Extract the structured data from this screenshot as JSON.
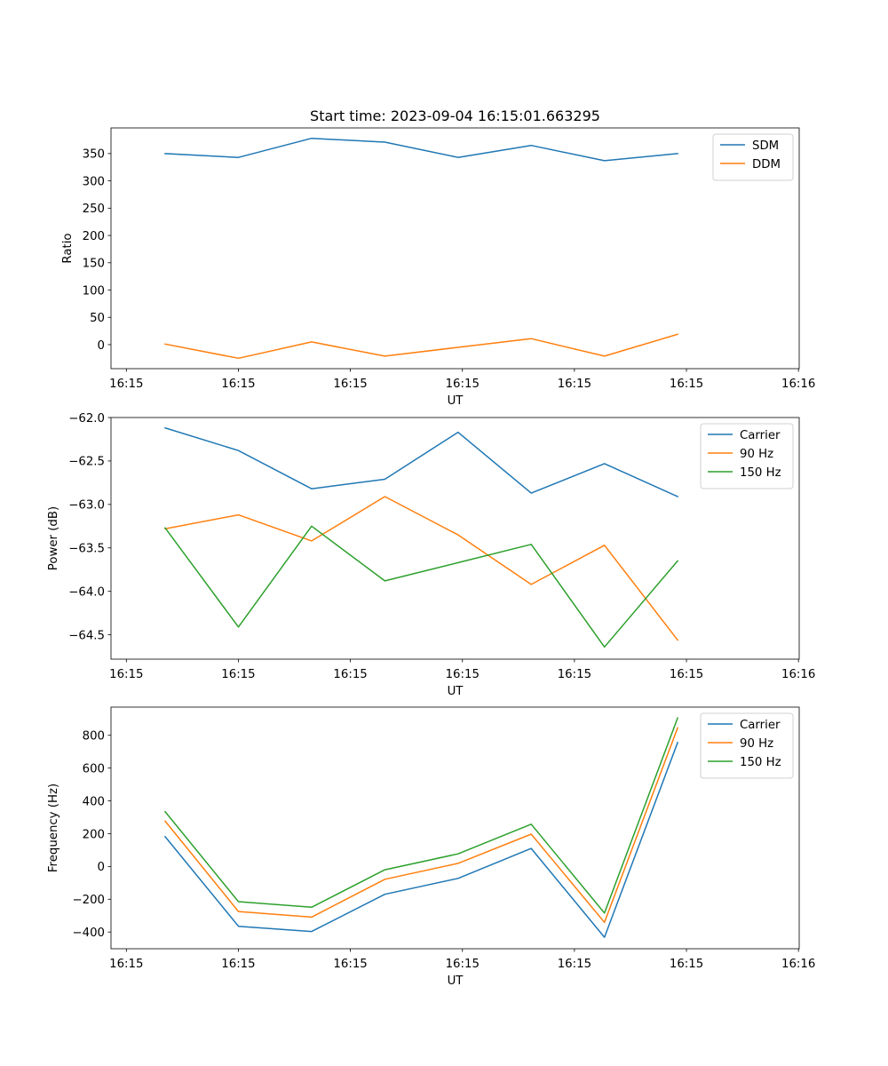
{
  "figure_title": "Start time: 2023-09-04 16:15:01.663295",
  "chart_data": [
    {
      "type": "line",
      "title": "Start time: 2023-09-04 16:15:01.663295",
      "xlabel": "UT",
      "ylabel": "Ratio",
      "x": [
        1,
        2,
        3,
        4,
        5,
        6,
        7,
        8
      ],
      "xlim": [
        0.26,
        9.66
      ],
      "xticks": [
        0.47,
        2.0,
        3.53,
        5.06,
        6.59,
        8.12,
        9.65
      ],
      "xtick_labels": [
        "16:15",
        "16:15",
        "16:15",
        "16:15",
        "16:15",
        "16:15",
        "16:16"
      ],
      "ylim": [
        -44,
        397
      ],
      "yticks": [
        0,
        50,
        100,
        150,
        200,
        250,
        300,
        350
      ],
      "ytick_labels": [
        "0",
        "50",
        "100",
        "150",
        "200",
        "250",
        "300",
        "350"
      ],
      "legend_position": "top-right",
      "grid": false,
      "series": [
        {
          "name": "SDM",
          "color": "#1f77b4",
          "values": [
            350,
            343,
            378,
            371,
            343,
            365,
            337,
            350
          ]
        },
        {
          "name": "DDM",
          "color": "#ff7f0e",
          "values": [
            1,
            -25,
            5,
            -21,
            -5,
            11,
            -21,
            19
          ]
        }
      ]
    },
    {
      "type": "line",
      "title": "",
      "xlabel": "UT",
      "ylabel": "Power (dB)",
      "x": [
        1,
        2,
        3,
        4,
        5,
        6,
        7,
        8
      ],
      "xlim": [
        0.26,
        9.66
      ],
      "xticks": [
        0.47,
        2.0,
        3.53,
        5.06,
        6.59,
        8.12,
        9.65
      ],
      "xtick_labels": [
        "16:15",
        "16:15",
        "16:15",
        "16:15",
        "16:15",
        "16:15",
        "16:16"
      ],
      "ylim": [
        -64.78,
        -62.0
      ],
      "yticks": [
        -64.5,
        -64.0,
        -63.5,
        -63.0,
        -62.5,
        -62.0
      ],
      "ytick_labels": [
        "−64.5",
        "−64.0",
        "−63.5",
        "−63.0",
        "−62.5",
        "−62.0"
      ],
      "legend_position": "top-right",
      "grid": false,
      "series": [
        {
          "name": "Carrier",
          "color": "#1f77b4",
          "values": [
            -62.12,
            -62.38,
            -62.82,
            -62.71,
            -62.17,
            -62.87,
            -62.53,
            -62.91
          ]
        },
        {
          "name": "90 Hz",
          "color": "#ff7f0e",
          "values": [
            -63.28,
            -63.12,
            -63.42,
            -62.91,
            -63.35,
            -63.92,
            -63.47,
            -64.56
          ]
        },
        {
          "name": "150 Hz",
          "color": "#2ca02c",
          "values": [
            -63.27,
            -64.41,
            -63.25,
            -63.88,
            -63.67,
            -63.46,
            -64.64,
            -63.65
          ]
        }
      ]
    },
    {
      "type": "line",
      "title": "",
      "xlabel": "UT",
      "ylabel": "Frequency (Hz)",
      "x": [
        1,
        2,
        3,
        4,
        5,
        6,
        7,
        8
      ],
      "xlim": [
        0.26,
        9.66
      ],
      "xticks": [
        0.47,
        2.0,
        3.53,
        5.06,
        6.59,
        8.12,
        9.65
      ],
      "xtick_labels": [
        "16:15",
        "16:15",
        "16:15",
        "16:15",
        "16:15",
        "16:15",
        "16:16"
      ],
      "ylim": [
        -502,
        972
      ],
      "yticks": [
        -400,
        -200,
        0,
        200,
        400,
        600,
        800
      ],
      "ytick_labels": [
        "−400",
        "−200",
        "0",
        "200",
        "400",
        "600",
        "800"
      ],
      "legend_position": "top-right",
      "grid": false,
      "series": [
        {
          "name": "Carrier",
          "color": "#1f77b4",
          "values": [
            182,
            -365,
            -397,
            -170,
            -73,
            110,
            -432,
            756
          ]
        },
        {
          "name": "90 Hz",
          "color": "#ff7f0e",
          "values": [
            276,
            -275,
            -309,
            -78,
            19,
            197,
            -341,
            845
          ]
        },
        {
          "name": "150 Hz",
          "color": "#2ca02c",
          "values": [
            334,
            -215,
            -249,
            -20,
            77,
            258,
            -284,
            906
          ]
        }
      ]
    }
  ]
}
